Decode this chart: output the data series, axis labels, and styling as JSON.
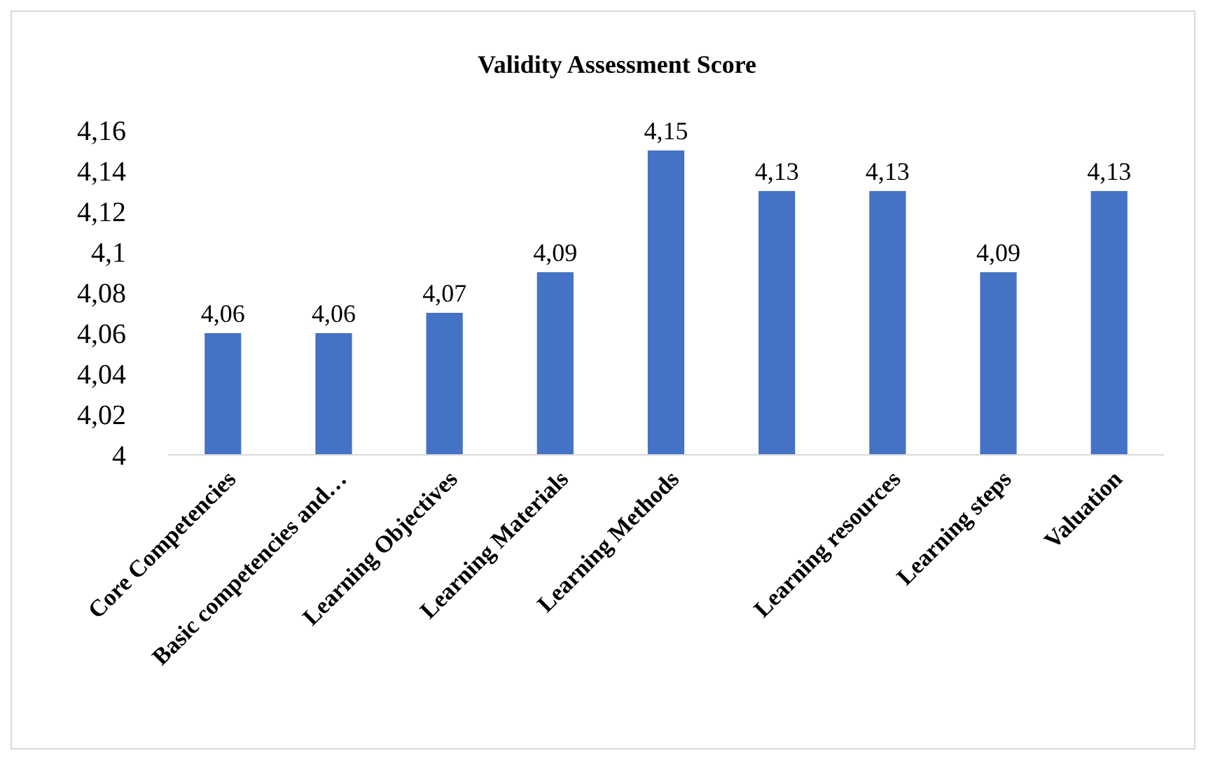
{
  "chart_data": {
    "type": "bar",
    "title": "Validity Assessment Score",
    "categories": [
      "Core Competencies",
      "Basic competencies and…",
      "Learning Objectives",
      "Learning Materials",
      "Learning Methods",
      null,
      "Learning resources",
      "Learning steps",
      "Valuation"
    ],
    "values": [
      4.06,
      4.06,
      4.07,
      4.09,
      4.15,
      4.13,
      4.13,
      4.09,
      4.13
    ],
    "value_labels": [
      "4,06",
      "4,06",
      "4,07",
      "4,09",
      "4,15",
      "4,13",
      "4,13",
      "4,09",
      "4,13"
    ],
    "color": "#4472c4",
    "ylim": [
      4,
      4.16
    ],
    "yticks": [
      4,
      {
        "value": 4.02,
        "label": "4,02"
      },
      {
        "value": 4.04,
        "label": "4,04"
      },
      {
        "value": 4.06,
        "label": "4,06"
      },
      {
        "value": 4.08,
        "label": "4,08"
      },
      {
        "value": 4.1,
        "label": "4,1"
      },
      {
        "value": 4.12,
        "label": "4,12"
      },
      {
        "value": 4.14,
        "label": "4,14"
      },
      {
        "value": 4.16,
        "label": "4,16"
      }
    ],
    "grid": false
  }
}
